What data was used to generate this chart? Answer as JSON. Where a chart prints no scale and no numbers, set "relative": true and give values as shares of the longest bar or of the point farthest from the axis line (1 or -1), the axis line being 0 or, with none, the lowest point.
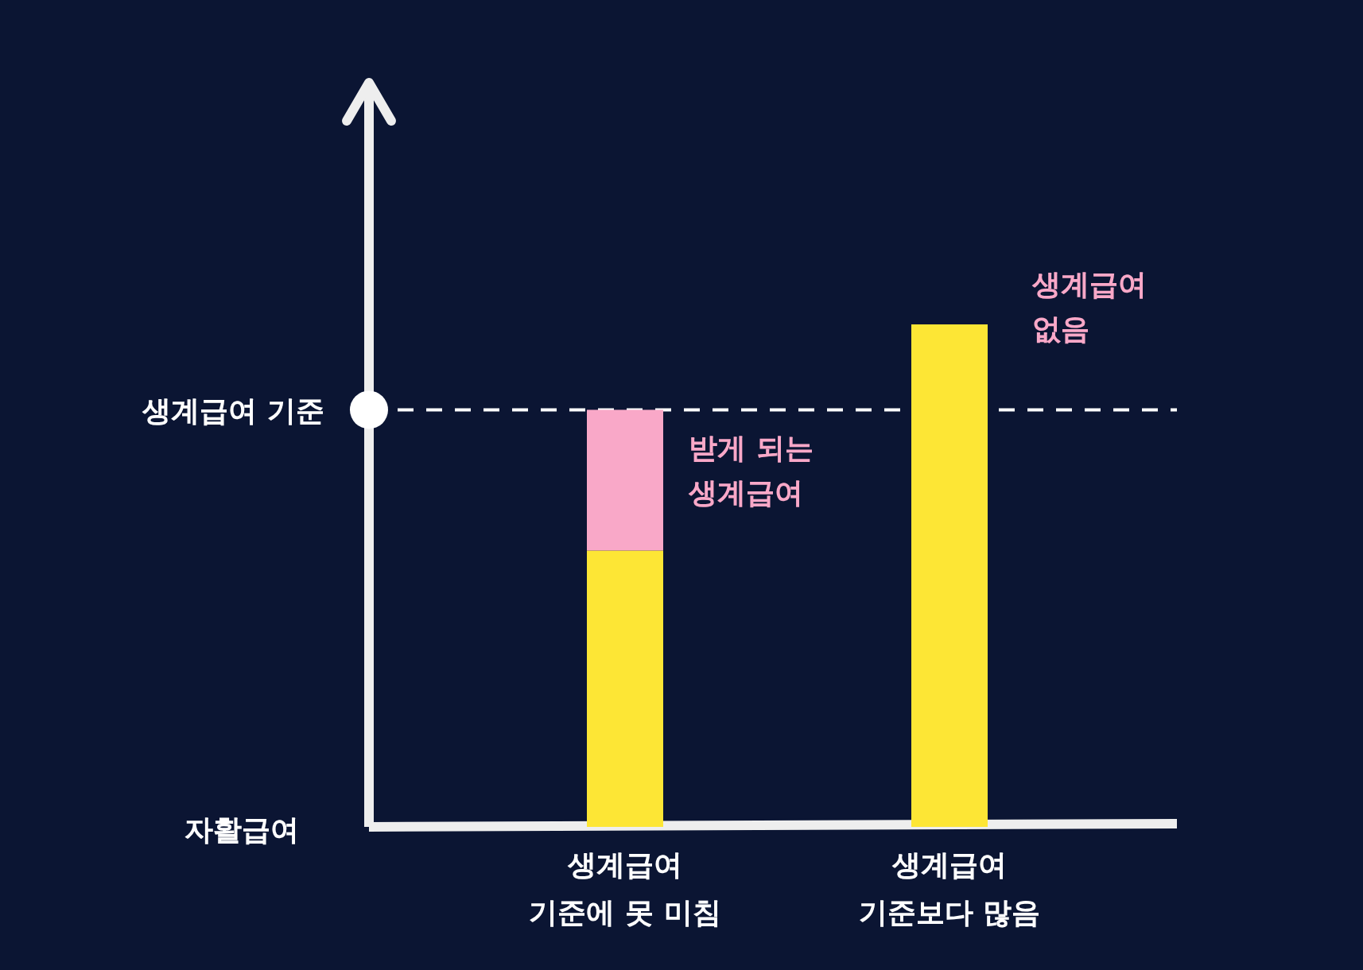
{
  "chart_data": {
    "type": "bar",
    "relative": true,
    "stacked": true,
    "ylabel": "자활급여",
    "categories": [
      "생계급여\n기준에 못 미침",
      "생계급여\n기준보다 많음"
    ],
    "series": [
      {
        "color": "#fde635",
        "values": [
          0.55,
          1
        ]
      },
      {
        "name": "받게 되는\n생계급여",
        "color": "#f9a8c8",
        "values": [
          0.28,
          null
        ]
      }
    ],
    "ref_lines": [
      {
        "axis": "y",
        "value": 0.83,
        "label": "생계급여 기준",
        "color": "#ffffff",
        "line_style": "dashed"
      }
    ],
    "annotations": [
      {
        "text": "생계급여\n없음",
        "x": "생계급여\n기준보다 많음",
        "y": 1
      }
    ],
    "xlabel": null
  }
}
